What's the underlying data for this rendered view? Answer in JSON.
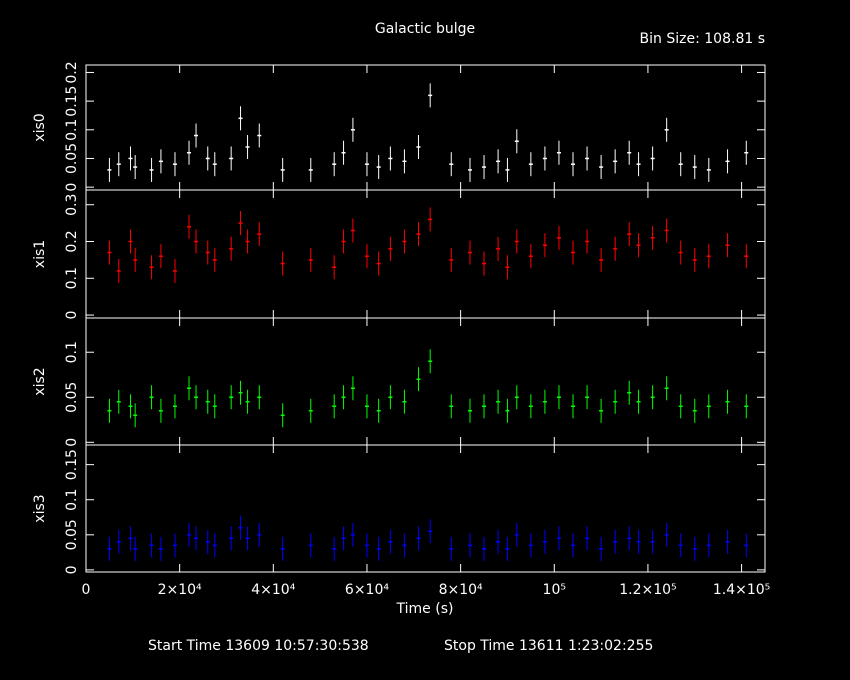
{
  "title": "Galactic bulge",
  "bin_size": "Bin Size: 108.81 s",
  "x_label": "Time (s)",
  "start_time": "Start Time 13609 10:57:30:538",
  "stop_time": "Stop Time 13611  1:23:02:255",
  "chart_data": [
    {
      "type": "scatter",
      "y_label": "xis0",
      "color": "#ffffff",
      "xlim": [
        0,
        145000
      ],
      "ylim": [
        -0.005,
        0.213
      ],
      "yticks": [
        0,
        0.05,
        0.1,
        0.15,
        0.2
      ],
      "x": [
        5000,
        7000,
        9500,
        10500,
        14000,
        16000,
        19000,
        22000,
        23500,
        26000,
        27500,
        31000,
        33000,
        34500,
        37000,
        42000,
        48000,
        53000,
        55000,
        57000,
        60000,
        62500,
        65000,
        68000,
        71000,
        73500,
        78000,
        82000,
        85000,
        88000,
        90000,
        92000,
        95000,
        98000,
        101000,
        104000,
        107000,
        110000,
        113000,
        116000,
        118000,
        121000,
        124000,
        127000,
        130000,
        133000,
        137000,
        141000
      ],
      "values": [
        0.03,
        0.04,
        0.05,
        0.035,
        0.03,
        0.045,
        0.04,
        0.06,
        0.09,
        0.05,
        0.04,
        0.05,
        0.12,
        0.07,
        0.09,
        0.03,
        0.03,
        0.04,
        0.06,
        0.1,
        0.04,
        0.035,
        0.05,
        0.045,
        0.07,
        0.16,
        0.04,
        0.03,
        0.035,
        0.045,
        0.03,
        0.08,
        0.04,
        0.05,
        0.06,
        0.04,
        0.05,
        0.035,
        0.045,
        0.06,
        0.04,
        0.05,
        0.1,
        0.04,
        0.035,
        0.03,
        0.045,
        0.06
      ]
    },
    {
      "type": "scatter",
      "y_label": "xis1",
      "color": "#ff0000",
      "xlim": [
        0,
        145000
      ],
      "ylim": [
        -0.008,
        0.34
      ],
      "yticks": [
        0,
        0.1,
        0.2,
        0.3
      ],
      "x": [
        5000,
        7000,
        9500,
        10500,
        14000,
        16000,
        19000,
        22000,
        23500,
        26000,
        27500,
        31000,
        33000,
        34500,
        37000,
        42000,
        48000,
        53000,
        55000,
        57000,
        60000,
        62500,
        65000,
        68000,
        71000,
        73500,
        78000,
        82000,
        85000,
        88000,
        90000,
        92000,
        95000,
        98000,
        101000,
        104000,
        107000,
        110000,
        113000,
        116000,
        118000,
        121000,
        124000,
        127000,
        130000,
        133000,
        137000,
        141000
      ],
      "values": [
        0.17,
        0.12,
        0.2,
        0.15,
        0.13,
        0.16,
        0.12,
        0.24,
        0.2,
        0.17,
        0.15,
        0.18,
        0.25,
        0.2,
        0.22,
        0.14,
        0.15,
        0.13,
        0.2,
        0.23,
        0.16,
        0.14,
        0.18,
        0.2,
        0.22,
        0.26,
        0.15,
        0.17,
        0.14,
        0.18,
        0.13,
        0.2,
        0.16,
        0.19,
        0.21,
        0.17,
        0.2,
        0.15,
        0.18,
        0.22,
        0.19,
        0.21,
        0.23,
        0.17,
        0.15,
        0.16,
        0.19,
        0.16
      ]
    },
    {
      "type": "scatter",
      "y_label": "xis2",
      "color": "#00ff00",
      "xlim": [
        0,
        145000
      ],
      "ylim": [
        -0.003,
        0.138
      ],
      "yticks": [
        0,
        0.05,
        0.1
      ],
      "x": [
        5000,
        7000,
        9500,
        10500,
        14000,
        16000,
        19000,
        22000,
        23500,
        26000,
        27500,
        31000,
        33000,
        34500,
        37000,
        42000,
        48000,
        53000,
        55000,
        57000,
        60000,
        62500,
        65000,
        68000,
        71000,
        73500,
        78000,
        82000,
        85000,
        88000,
        90000,
        92000,
        95000,
        98000,
        101000,
        104000,
        107000,
        110000,
        113000,
        116000,
        118000,
        121000,
        124000,
        127000,
        130000,
        133000,
        137000,
        141000
      ],
      "values": [
        0.035,
        0.045,
        0.04,
        0.03,
        0.05,
        0.035,
        0.04,
        0.06,
        0.05,
        0.045,
        0.04,
        0.05,
        0.055,
        0.045,
        0.05,
        0.03,
        0.035,
        0.04,
        0.05,
        0.06,
        0.04,
        0.035,
        0.05,
        0.045,
        0.07,
        0.09,
        0.04,
        0.035,
        0.04,
        0.045,
        0.035,
        0.05,
        0.04,
        0.045,
        0.05,
        0.04,
        0.05,
        0.035,
        0.045,
        0.055,
        0.045,
        0.05,
        0.06,
        0.04,
        0.035,
        0.04,
        0.045,
        0.04
      ]
    },
    {
      "type": "scatter",
      "y_label": "xis3",
      "color": "#0000ff",
      "xlim": [
        0,
        145000
      ],
      "ylim": [
        -0.003,
        0.178
      ],
      "yticks": [
        0,
        0.05,
        0.1,
        0.15
      ],
      "xticks": [
        0,
        {
          "value": 20000,
          "label": "2×10⁴"
        },
        {
          "value": 40000,
          "label": "4×10⁴"
        },
        {
          "value": 60000,
          "label": "6×10⁴"
        },
        {
          "value": 80000,
          "label": "8×10⁴"
        },
        {
          "value": 100000,
          "label": "10⁵"
        },
        {
          "value": 120000,
          "label": "1.2×10⁵"
        },
        {
          "value": 140000,
          "label": "1.4×10⁵"
        }
      ],
      "x": [
        5000,
        7000,
        9500,
        10500,
        14000,
        16000,
        19000,
        22000,
        23500,
        26000,
        27500,
        31000,
        33000,
        34500,
        37000,
        42000,
        48000,
        53000,
        55000,
        57000,
        60000,
        62500,
        65000,
        68000,
        71000,
        73500,
        78000,
        82000,
        85000,
        88000,
        90000,
        92000,
        95000,
        98000,
        101000,
        104000,
        107000,
        110000,
        113000,
        116000,
        118000,
        121000,
        124000,
        127000,
        130000,
        133000,
        137000,
        141000
      ],
      "values": [
        0.03,
        0.04,
        0.045,
        0.03,
        0.035,
        0.03,
        0.035,
        0.05,
        0.045,
        0.04,
        0.035,
        0.045,
        0.06,
        0.045,
        0.05,
        0.03,
        0.035,
        0.03,
        0.045,
        0.05,
        0.035,
        0.03,
        0.04,
        0.035,
        0.045,
        0.055,
        0.03,
        0.035,
        0.03,
        0.04,
        0.03,
        0.05,
        0.035,
        0.04,
        0.045,
        0.035,
        0.045,
        0.03,
        0.04,
        0.045,
        0.04,
        0.04,
        0.05,
        0.035,
        0.03,
        0.035,
        0.04,
        0.035
      ]
    }
  ]
}
